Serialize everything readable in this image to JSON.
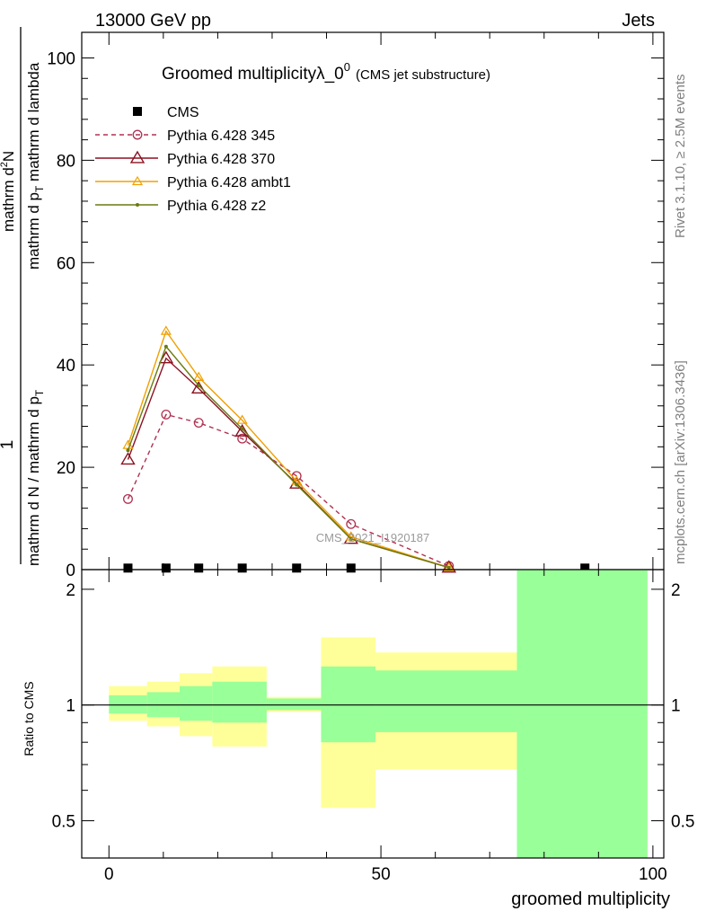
{
  "header": {
    "left": "13000 GeV pp",
    "right": "Jets"
  },
  "side_labels": {
    "rivet": "Rivet 3.1.10, ≥ 2.5M events",
    "mcplots": "mcplots.cern.ch [arXiv:1306.3436]"
  },
  "watermark": "CMS_2021_I1920187",
  "chart_data": [
    {
      "type": "line",
      "title": "Groomed multiplicityλ_0",
      "title_sup": "0",
      "subtitle": "(CMS jet substructure)",
      "ylabel_numerator": "1",
      "ylabel_denominator": "mathrm d N / mathrm d p",
      "ylabel_denominator_sub": "T",
      "ylabel_top": "mathrm d",
      "ylabel_top_sup": "2",
      "ylabel_top_rest": "N",
      "ylabel_bottom": "mathrm d p",
      "ylabel_bottom_sub": "T",
      "ylabel_bottom_rest": " mathrm d lambda",
      "xlim": [
        -5,
        102
      ],
      "ylim": [
        0,
        105
      ],
      "yticks": [
        0,
        20,
        40,
        60,
        80,
        100
      ],
      "yticklabels": [
        "0",
        "20",
        "40",
        "60",
        "80",
        "100"
      ],
      "legend_placement": "top-left",
      "series": [
        {
          "name": "CMS",
          "color": "#000000",
          "marker": "square",
          "x": [
            3.5,
            10.5,
            16.5,
            24.5,
            34.5,
            44.5,
            87.5
          ],
          "y": [
            0.3,
            0.3,
            0.3,
            0.3,
            0.3,
            0.3,
            0.3
          ]
        },
        {
          "name": "Pythia 6.428 345",
          "color": "#b03050",
          "marker": "circle",
          "dashed": true,
          "x": [
            3.5,
            10.5,
            16.5,
            24.5,
            34.5,
            44.5,
            62.5
          ],
          "y": [
            13.8,
            30.3,
            28.7,
            25.6,
            18.3,
            8.9,
            0.7
          ]
        },
        {
          "name": "Pythia 6.428 370",
          "color": "#8b1020",
          "marker": "triangle",
          "x": [
            3.5,
            10.5,
            16.5,
            24.5,
            34.5,
            44.5,
            62.5
          ],
          "y": [
            21.5,
            41.3,
            35.4,
            27.0,
            16.8,
            6.0,
            0.4
          ]
        },
        {
          "name": "Pythia 6.428 ambt1",
          "color": "#f0a000",
          "marker": "triangle-small",
          "x": [
            3.5,
            10.5,
            16.5,
            24.5,
            34.5,
            44.5,
            62.5
          ],
          "y": [
            24.3,
            46.6,
            37.6,
            29.2,
            17.3,
            6.4,
            0.4
          ]
        },
        {
          "name": "Pythia 6.428 z2",
          "color": "#6b7a10",
          "marker": "dot",
          "x": [
            3.5,
            10.5,
            16.5,
            24.5,
            34.5,
            44.5,
            62.5
          ],
          "y": [
            23.3,
            43.6,
            36.0,
            27.5,
            16.6,
            6.0,
            0.4
          ]
        }
      ]
    },
    {
      "type": "area",
      "ylabel": "Ratio to CMS",
      "xlabel": "groomed multiplicity",
      "xlim": [
        -5,
        102
      ],
      "ylim": [
        0.4,
        2.25
      ],
      "xticks": [
        0,
        50,
        100
      ],
      "xticklabels": [
        "0",
        "50",
        "100"
      ],
      "yticks": [
        0.5,
        1,
        2
      ],
      "yticklabels": [
        "0.5",
        "1",
        "2"
      ],
      "reference_line": 1,
      "bands": [
        {
          "name": "stat+syst",
          "color": "#ffff99",
          "bins": [
            [
              0,
              7,
              0.91,
              1.12
            ],
            [
              7,
              13,
              0.88,
              1.15
            ],
            [
              13,
              19,
              0.83,
              1.21
            ],
            [
              19,
              29,
              0.78,
              1.26
            ],
            [
              29,
              39,
              0.96,
              1.05
            ],
            [
              39,
              49,
              0.54,
              1.5
            ],
            [
              49,
              75,
              0.68,
              1.37
            ],
            [
              75,
              99,
              0.4,
              2.25
            ]
          ]
        },
        {
          "name": "stat",
          "color": "#99ff99",
          "bins": [
            [
              0,
              7,
              0.95,
              1.06
            ],
            [
              7,
              13,
              0.93,
              1.08
            ],
            [
              13,
              19,
              0.91,
              1.12
            ],
            [
              19,
              29,
              0.9,
              1.15
            ],
            [
              29,
              39,
              0.97,
              1.04
            ],
            [
              39,
              49,
              0.8,
              1.26
            ],
            [
              49,
              75,
              0.85,
              1.23
            ],
            [
              75,
              99,
              0.4,
              2.25
            ]
          ]
        }
      ]
    }
  ]
}
